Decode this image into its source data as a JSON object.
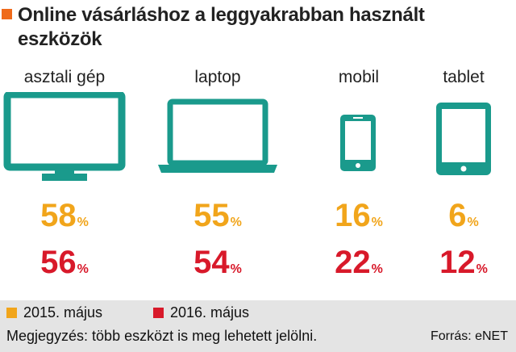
{
  "title": "Online vásárláshoz a leggyakrabban használt eszközök",
  "colors": {
    "title_marker": "#ef6a1a",
    "icon": "#1a9a8c",
    "series_2015": "#f1a51b",
    "series_2016": "#d8192a",
    "footer_bg": "#e4e4e4"
  },
  "chart_data": {
    "type": "table",
    "title": "Online vásárláshoz a leggyakrabban használt eszközök",
    "categories": [
      "asztali gép",
      "laptop",
      "mobil",
      "tablet"
    ],
    "icons": [
      "desktop-monitor-icon",
      "laptop-icon",
      "smartphone-icon",
      "tablet-icon"
    ],
    "unit": "%",
    "series": [
      {
        "name": "2015. május",
        "values": [
          58,
          55,
          16,
          6
        ],
        "color": "#f1a51b"
      },
      {
        "name": "2016. május",
        "values": [
          56,
          54,
          22,
          12
        ],
        "color": "#d8192a"
      }
    ]
  },
  "legend": [
    "2015. május",
    "2016. május"
  ],
  "note": "Megjegyzés: több eszközt is meg lehetett jelölni.",
  "source": "Forrás: eNET"
}
